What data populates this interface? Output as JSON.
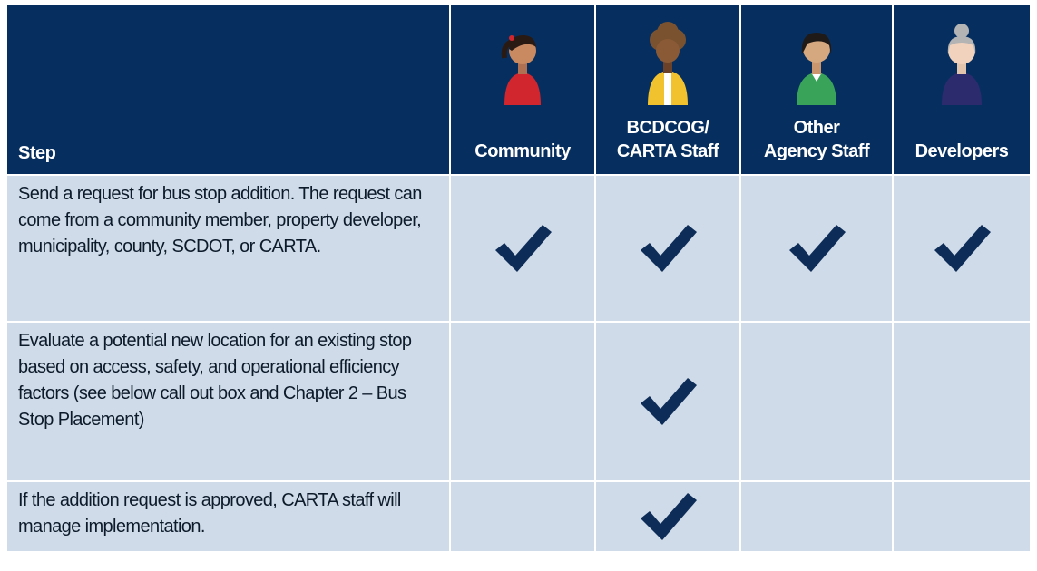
{
  "header": {
    "step": "Step",
    "columns": [
      "Community",
      "BCDCOG/\nCARTA Staff",
      "Other\nAgency Staff",
      "Developers"
    ]
  },
  "rows": [
    {
      "step": "Send a request for bus stop addition. The request can come from a community member, property developer, municipality, county, SCDOT, or CARTA.",
      "checks": [
        true,
        true,
        true,
        true
      ]
    },
    {
      "step": "Evaluate a potential new location for an existing stop based on access, safety, and operational efficiency factors (see below call out box and Chapter 2 – Bus Stop Placement)",
      "checks": [
        false,
        true,
        false,
        false
      ]
    },
    {
      "step": "If the addition request is approved, CARTA staff will manage implementation.",
      "checks": [
        false,
        true,
        false,
        false
      ]
    }
  ]
}
